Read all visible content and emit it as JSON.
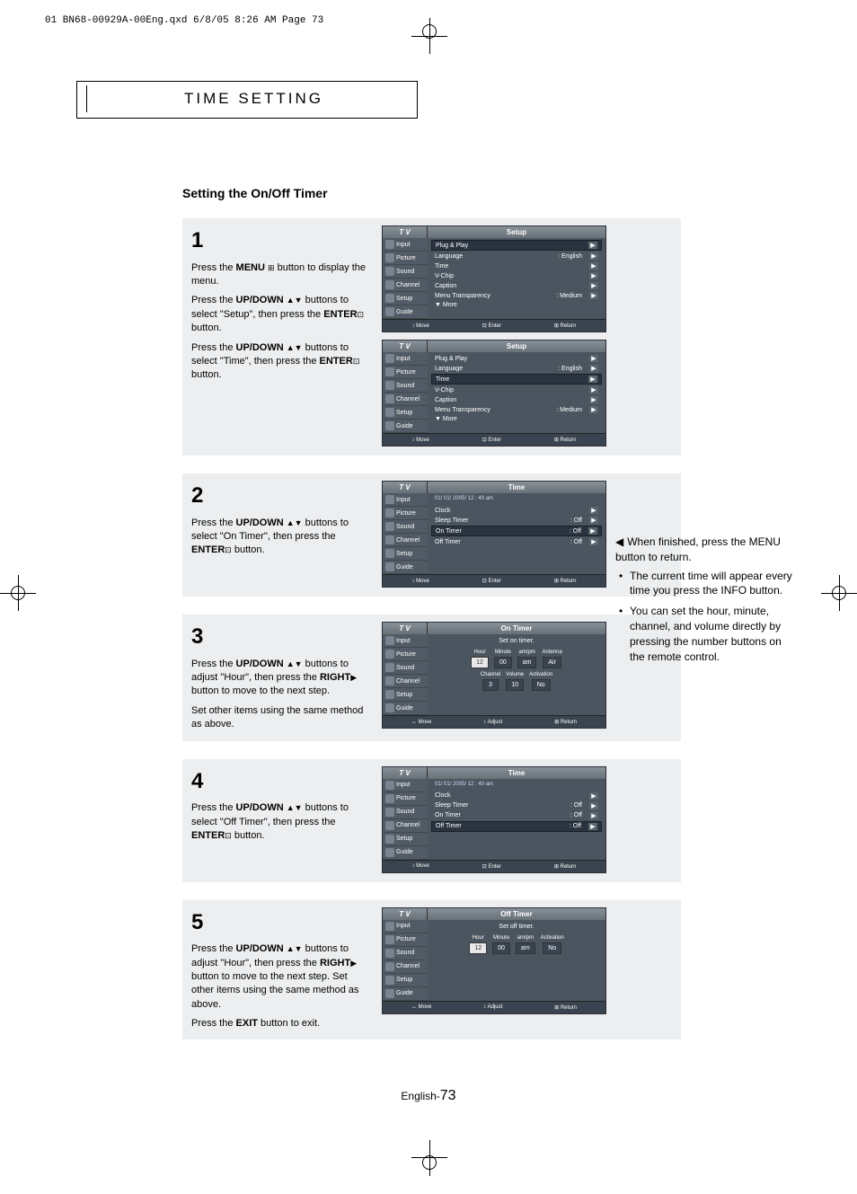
{
  "file_header": "01 BN68-00929A-00Eng.qxd  6/8/05 8:26 AM  Page 73",
  "section_title": "TIME SETTING",
  "main_heading": "Setting the On/Off Timer",
  "steps": [
    {
      "num": "1",
      "text_parts": [
        {
          "pre": "Press the ",
          "bold": "MENU",
          "icon": "⊞",
          "post": " button to display the menu."
        },
        {
          "pre": "Press the ",
          "bold": "UP/DOWN",
          "icon": "▲▼",
          "post": " buttons to select \"Setup\", then press the ",
          "bold2": "ENTER",
          "icon2": "⊡",
          "post2": " button."
        },
        {
          "pre": "Press the ",
          "bold": "UP/DOWN",
          "icon": "▲▼",
          "post": " buttons to select \"Time\", then press the ",
          "bold2": "ENTER",
          "icon2": "⊡",
          "post2": " button."
        }
      ]
    },
    {
      "num": "2",
      "text_parts": [
        {
          "pre": "Press the ",
          "bold": "UP/DOWN",
          "icon": "▲▼",
          "post": " buttons to select \"On Timer\", then press the ",
          "bold2": "ENTER",
          "icon2": "⊡",
          "post2": " button."
        }
      ]
    },
    {
      "num": "3",
      "text_parts": [
        {
          "pre": "Press the ",
          "bold": "UP/DOWN",
          "icon": "▲▼",
          "post": " buttons to adjust \"Hour\", then press the ",
          "bold2": "RIGHT",
          "icon2": "▶",
          "post2": " button to move to the next step."
        },
        {
          "plain": "Set other items using the same method as above."
        }
      ]
    },
    {
      "num": "4",
      "text_parts": [
        {
          "pre": "Press the ",
          "bold": "UP/DOWN",
          "icon": "▲▼",
          "post": " buttons to select \"Off Timer\", then press the ",
          "bold2": "ENTER",
          "icon2": "⊡",
          "post2": " button."
        }
      ]
    },
    {
      "num": "5",
      "text_parts": [
        {
          "pre": "Press the ",
          "bold": "UP/DOWN",
          "icon": "▲▼",
          "post": " buttons to adjust \"Hour\", then press the ",
          "bold2": "RIGHT",
          "icon2": "▶",
          "post2": " button to move to the next step. Set other items using the same method as above."
        },
        {
          "pre": "Press the ",
          "bold": "EXIT",
          "post": " button to exit."
        }
      ]
    }
  ],
  "side_notes": {
    "lead": "When finished, press the MENU button to return.",
    "bullets": [
      "The current time will appear every time you press the INFO button.",
      "You can set the hour, minute, channel, and volume directly by pressing the number buttons on the remote control."
    ]
  },
  "tv_common": {
    "tv": "T V",
    "sidebar": [
      "Input",
      "Picture",
      "Sound",
      "Channel",
      "Setup",
      "Guide"
    ],
    "footer_move": "Move",
    "footer_enter": "Enter",
    "footer_return": "Return",
    "footer_adjust": "Adjust"
  },
  "menus": {
    "setup1": {
      "title": "Setup",
      "rows": [
        {
          "label": "Plug & Play",
          "val": "",
          "hl": true
        },
        {
          "label": "Language",
          "val": ": English"
        },
        {
          "label": "Time",
          "val": ""
        },
        {
          "label": "V-Chip",
          "val": ""
        },
        {
          "label": "Caption",
          "val": ""
        },
        {
          "label": "Menu Transparency",
          "val": ": Medium"
        },
        {
          "label": "▼ More",
          "val": "",
          "noarrow": true
        }
      ]
    },
    "setup2": {
      "title": "Setup",
      "rows": [
        {
          "label": "Plug & Play",
          "val": ""
        },
        {
          "label": "Language",
          "val": ": English"
        },
        {
          "label": "Time",
          "val": "",
          "hl": true
        },
        {
          "label": "V-Chip",
          "val": ""
        },
        {
          "label": "Caption",
          "val": ""
        },
        {
          "label": "Menu Transparency",
          "val": ": Medium"
        },
        {
          "label": "▼ More",
          "val": "",
          "noarrow": true
        }
      ]
    },
    "time1": {
      "title": "Time",
      "date": "01/ 01/ 2005/ 12 : 40 am",
      "rows": [
        {
          "label": "Clock",
          "val": ""
        },
        {
          "label": "Sleep Timer",
          "val": ": Off"
        },
        {
          "label": "On Timer",
          "val": ": Off",
          "hl": true
        },
        {
          "label": "Off Timer",
          "val": ": Off"
        }
      ]
    },
    "ontimer": {
      "title": "On Timer",
      "heading": "Set on timer.",
      "row1_labels": [
        "Hour",
        "Minute",
        "am/pm",
        "Antenna"
      ],
      "row1_vals": [
        "12",
        "00",
        "am",
        "Air"
      ],
      "row2_labels": [
        "Channel",
        "Volume",
        "Activation"
      ],
      "row2_vals": [
        "3",
        "10",
        "No"
      ]
    },
    "time2": {
      "title": "Time",
      "date": "01/ 01/ 2005/ 12 : 40 am",
      "rows": [
        {
          "label": "Clock",
          "val": ""
        },
        {
          "label": "Sleep Timer",
          "val": ": Off"
        },
        {
          "label": "On Timer",
          "val": ": Off"
        },
        {
          "label": "Off Timer",
          "val": ": Off",
          "hl": true
        }
      ]
    },
    "offtimer": {
      "title": "Off Timer",
      "heading": "Set off timer.",
      "row1_labels": [
        "Hour",
        "Minute",
        "am/pm",
        "Activation"
      ],
      "row1_vals": [
        "12",
        "00",
        "am",
        "No"
      ]
    }
  },
  "page_footer": {
    "lang": "English-",
    "num": "73"
  },
  "colors": {
    "step_bg": "#eceef0",
    "tv_bg": "#4a5560",
    "tv_header": "#889098"
  }
}
